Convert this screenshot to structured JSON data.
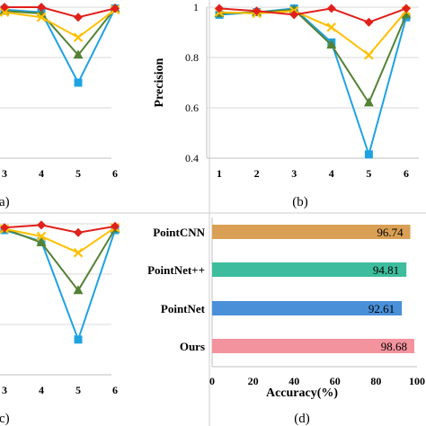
{
  "colors": {
    "grid": "#d9d9d9",
    "axis": "#bfbfbf",
    "red": "#e0201b",
    "yellow": "#ffc000",
    "green": "#548235",
    "blue": "#1fa3e0",
    "bar_pointcnn": "#d9a055",
    "bar_pointnetpp": "#3dbd9d",
    "bar_pointnet": "#4a90d9",
    "bar_ours": "#f2939e"
  },
  "chart_data": [
    {
      "id": "a",
      "type": "line",
      "panel_label": "(a)",
      "x": [
        3,
        4,
        5,
        6
      ],
      "x_ticks": [
        "3",
        "4",
        "5",
        "6"
      ],
      "ylim": [
        0.4,
        1.0
      ],
      "grid": true,
      "series": [
        {
          "color_key": "red",
          "marker": "diamond",
          "values": [
            1.0,
            1.0,
            0.96,
            0.995
          ]
        },
        {
          "color_key": "yellow",
          "marker": "x",
          "values": [
            0.98,
            0.96,
            0.88,
            0.99
          ]
        },
        {
          "color_key": "green",
          "marker": "triangle",
          "values": [
            0.985,
            0.975,
            0.81,
            0.995
          ]
        },
        {
          "color_key": "blue",
          "marker": "square",
          "values": [
            0.99,
            0.98,
            0.7,
            0.995
          ]
        }
      ]
    },
    {
      "id": "b",
      "type": "line",
      "panel_label": "(b)",
      "ylabel": "Precision",
      "x": [
        1,
        2,
        3,
        4,
        5,
        6
      ],
      "x_ticks": [
        "1",
        "2",
        "3",
        "4",
        "5",
        "6"
      ],
      "ylim": [
        0.4,
        1.0
      ],
      "y_ticks": [
        "0.4",
        "0.6",
        "0.8",
        "1"
      ],
      "grid": true,
      "series": [
        {
          "color_key": "red",
          "marker": "diamond",
          "values": [
            0.995,
            0.985,
            0.97,
            0.995,
            0.94,
            0.995
          ]
        },
        {
          "color_key": "yellow",
          "marker": "x",
          "values": [
            0.98,
            0.975,
            0.985,
            0.92,
            0.81,
            0.985
          ]
        },
        {
          "color_key": "green",
          "marker": "triangle",
          "values": [
            0.975,
            0.98,
            0.99,
            0.85,
            0.62,
            0.97
          ]
        },
        {
          "color_key": "blue",
          "marker": "square",
          "values": [
            0.97,
            0.98,
            0.995,
            0.86,
            0.415,
            0.96
          ]
        }
      ]
    },
    {
      "id": "c",
      "type": "line",
      "panel_label": "(c)",
      "x": [
        3,
        4,
        5,
        6
      ],
      "x_ticks": [
        "3",
        "4",
        "5",
        "6"
      ],
      "ylim": [
        0.4,
        1.0
      ],
      "grid": true,
      "series": [
        {
          "color_key": "red",
          "marker": "diamond",
          "values": [
            0.985,
            0.995,
            0.965,
            0.99
          ]
        },
        {
          "color_key": "yellow",
          "marker": "x",
          "values": [
            0.98,
            0.95,
            0.885,
            0.985
          ]
        },
        {
          "color_key": "green",
          "marker": "triangle",
          "values": [
            0.98,
            0.925,
            0.735,
            0.98
          ]
        },
        {
          "color_key": "blue",
          "marker": "square",
          "values": [
            0.975,
            0.93,
            0.54,
            0.975
          ]
        }
      ]
    },
    {
      "id": "d",
      "type": "bar",
      "orientation": "horizontal",
      "panel_label": "(d)",
      "xlabel": "Accuracy(%)",
      "xlim": [
        0,
        100
      ],
      "x_ticks": [
        "0",
        "20",
        "40",
        "60",
        "80",
        "100"
      ],
      "categories": [
        "PointCNN",
        "PointNet++",
        "PointNet",
        "Ours"
      ],
      "values": [
        96.74,
        94.81,
        92.61,
        98.68
      ],
      "value_labels": [
        "96.74",
        "94.81",
        "92.61",
        "98.68"
      ],
      "bar_color_keys": [
        "bar_pointcnn",
        "bar_pointnetpp",
        "bar_pointnet",
        "bar_ours"
      ]
    }
  ]
}
